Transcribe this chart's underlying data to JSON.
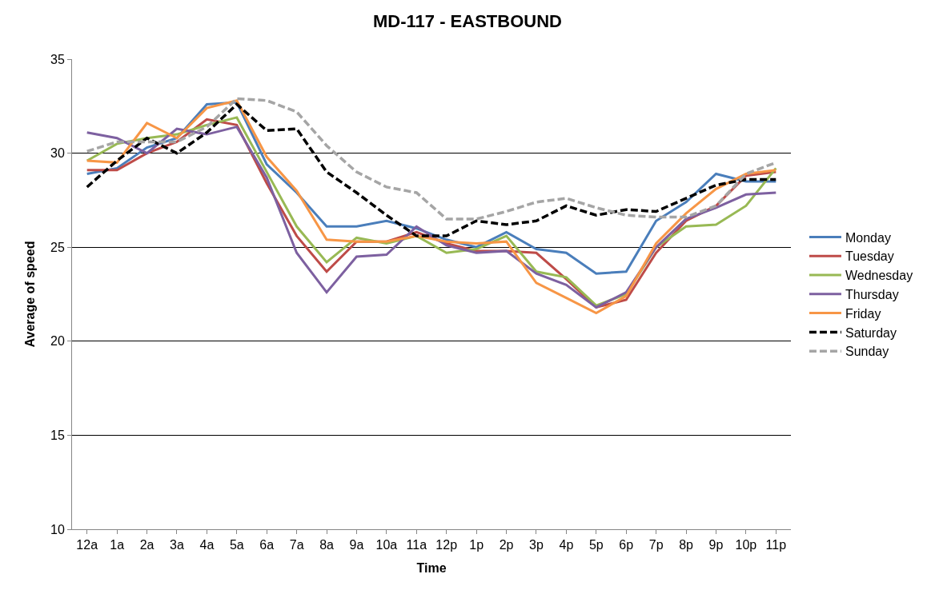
{
  "chart_data": {
    "type": "line",
    "title": "MD-117 - EASTBOUND",
    "xlabel": "Time",
    "ylabel": "Average of speed",
    "categories": [
      "12a",
      "1a",
      "2a",
      "3a",
      "4a",
      "5a",
      "6a",
      "7a",
      "8a",
      "9a",
      "10a",
      "11a",
      "12p",
      "1p",
      "2p",
      "3p",
      "4p",
      "5p",
      "6p",
      "7p",
      "8p",
      "9p",
      "10p",
      "11p"
    ],
    "ylim": [
      10,
      35
    ],
    "yticks": [
      10,
      15,
      20,
      25,
      30,
      35
    ],
    "grid": "y",
    "legend": "right",
    "marker": "none",
    "series": [
      {
        "name": "Monday",
        "color": "#4a7ebb",
        "line_style": "solid",
        "values": [
          28.9,
          29.2,
          30.3,
          30.8,
          32.6,
          32.7,
          29.4,
          27.9,
          26.1,
          26.1,
          26.4,
          26.0,
          25.4,
          25.0,
          25.8,
          24.9,
          24.7,
          23.6,
          23.7,
          26.4,
          27.4,
          28.9,
          28.5,
          28.5
        ]
      },
      {
        "name": "Tuesday",
        "color": "#be4b48",
        "line_style": "solid",
        "values": [
          29.1,
          29.1,
          30.0,
          30.6,
          31.8,
          31.5,
          28.4,
          25.6,
          23.7,
          25.3,
          25.3,
          25.8,
          25.2,
          24.8,
          24.8,
          24.7,
          23.3,
          21.8,
          22.2,
          24.7,
          26.4,
          27.2,
          28.8,
          29.0
        ]
      },
      {
        "name": "Wednesday",
        "color": "#98b954",
        "line_style": "solid",
        "values": [
          29.6,
          30.5,
          30.8,
          31.0,
          31.5,
          31.9,
          29.0,
          26.1,
          24.2,
          25.5,
          25.2,
          25.6,
          24.7,
          24.9,
          25.6,
          23.7,
          23.4,
          21.9,
          22.5,
          25.0,
          26.1,
          26.2,
          27.2,
          29.2
        ]
      },
      {
        "name": "Thursday",
        "color": "#7d60a0",
        "line_style": "solid",
        "values": [
          31.1,
          30.8,
          30.0,
          31.3,
          31.0,
          31.4,
          28.7,
          24.7,
          22.6,
          24.5,
          24.6,
          26.1,
          25.1,
          24.7,
          24.8,
          23.6,
          23.0,
          21.8,
          22.6,
          25.0,
          26.5,
          27.1,
          27.8,
          27.9
        ]
      },
      {
        "name": "Friday",
        "color": "#f79646",
        "line_style": "solid",
        "values": [
          29.6,
          29.5,
          31.6,
          30.8,
          32.4,
          32.8,
          29.8,
          28.0,
          25.4,
          25.3,
          25.3,
          25.6,
          25.3,
          25.2,
          25.3,
          23.1,
          22.3,
          21.5,
          22.4,
          25.2,
          26.8,
          28.1,
          28.9,
          29.1
        ]
      },
      {
        "name": "Saturday",
        "color": "#000000",
        "line_style": "dashed",
        "values": [
          28.2,
          29.6,
          30.8,
          30.0,
          31.1,
          32.6,
          31.2,
          31.3,
          29.0,
          27.9,
          26.7,
          25.6,
          25.6,
          26.4,
          26.2,
          26.4,
          27.2,
          26.7,
          27.0,
          26.9,
          27.6,
          28.3,
          28.6,
          28.6
        ]
      },
      {
        "name": "Sunday",
        "color": "#a5a5a5",
        "line_style": "dashed",
        "values": [
          30.1,
          30.6,
          30.6,
          30.6,
          31.4,
          32.9,
          32.8,
          32.2,
          30.4,
          29.0,
          28.2,
          27.9,
          26.5,
          26.5,
          26.9,
          27.4,
          27.6,
          27.1,
          26.7,
          26.6,
          26.6,
          27.2,
          28.9,
          29.5
        ]
      }
    ]
  }
}
